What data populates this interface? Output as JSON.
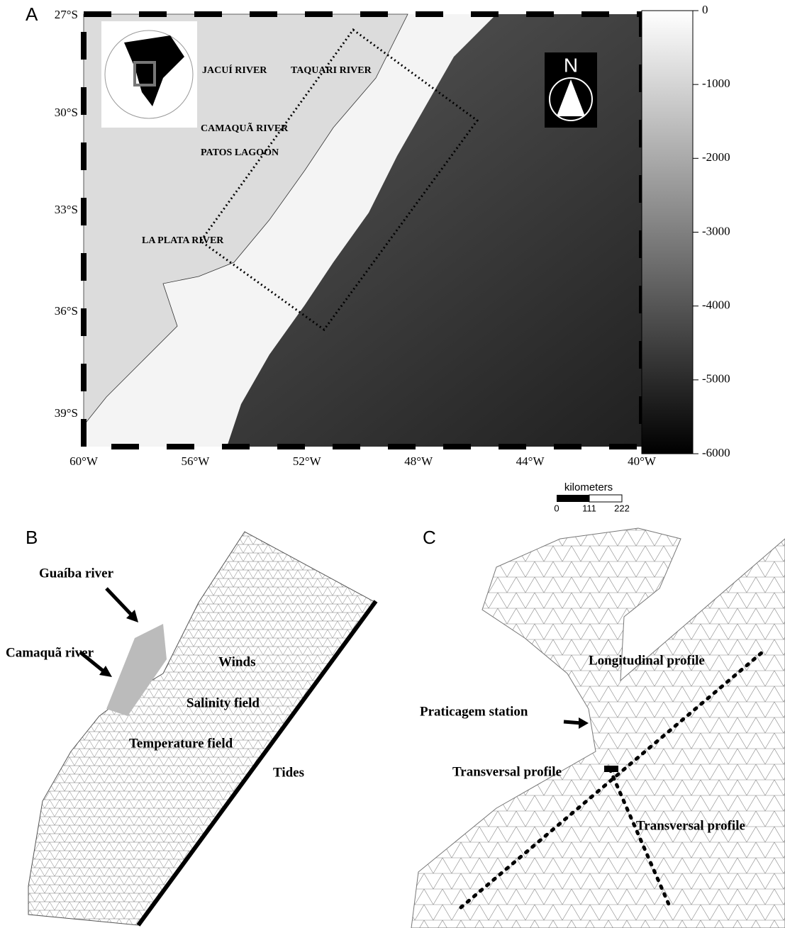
{
  "panel_a": {
    "label": "A",
    "lat_labels": [
      "27°S",
      "30°S",
      "33°S",
      "36°S",
      "39°S"
    ],
    "lon_labels": [
      "60°W",
      "56°W",
      "52°W",
      "48°W",
      "44°W",
      "40°W"
    ],
    "places": [
      "JACUÍ RIVER",
      "TAQUARI RIVER",
      "CAMAQUÃ RIVER",
      "PATOS LAGOON",
      "LA PLATA RIVER"
    ],
    "north": "N",
    "colorbar_ticks": [
      0,
      -1000,
      -2000,
      -3000,
      -4000,
      -5000,
      -6000
    ],
    "scale": {
      "title": "kilometers",
      "ticks": [
        0,
        111,
        222
      ]
    }
  },
  "panel_b": {
    "label": "B",
    "annotations": [
      "Guaíba river",
      "Camaquã river",
      "Winds",
      "Salinity field",
      "Temperature field",
      "Tides"
    ]
  },
  "panel_c": {
    "label": "C",
    "annotations": [
      "Longitudinal profile",
      "Praticagem station",
      "Transversal profile",
      "Transversal profile"
    ]
  }
}
